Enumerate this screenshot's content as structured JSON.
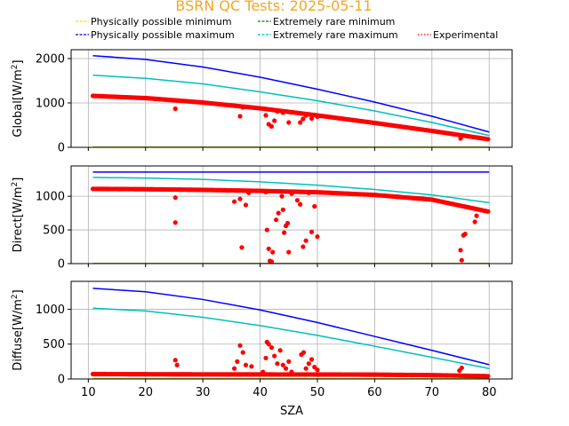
{
  "title": "BSRN QC Tests: 2025-05-11",
  "colors": {
    "title": "#f5a623",
    "phys_min": "#ffd700",
    "phys_max": "#0000ff",
    "rare_min": "#008000",
    "rare_max": "#00bfbf",
    "experimental": "#ff0000",
    "grid": "#b0b0b0"
  },
  "legend": [
    {
      "label": "Physically possible minimum",
      "key": "phys_min",
      "style": "dashed"
    },
    {
      "label": "Extremely rare minimum",
      "key": "rare_min",
      "style": "dashed"
    },
    {
      "label": "Physically possible maximum",
      "key": "phys_max",
      "style": "dashed"
    },
    {
      "label": "Extremely rare maximum",
      "key": "rare_max",
      "style": "dashed"
    },
    {
      "label": "Experimental",
      "key": "experimental",
      "style": "dotted"
    }
  ],
  "chart_data": [
    {
      "type": "scatter",
      "name": "global",
      "ylabel": "Global[W/m",
      "ylabel_sup": "2",
      "ylabel_end": "]",
      "xlim": [
        7,
        84
      ],
      "ylim": [
        0,
        2200
      ],
      "xticks": [
        10,
        20,
        30,
        40,
        50,
        60,
        70,
        80
      ],
      "yticks": [
        0,
        1000,
        2000
      ],
      "grid": true,
      "lines": {
        "phys_max": [
          [
            10.8,
            2065
          ],
          [
            20,
            1980
          ],
          [
            30,
            1810
          ],
          [
            40,
            1580
          ],
          [
            50,
            1310
          ],
          [
            60,
            1020
          ],
          [
            70,
            700
          ],
          [
            80,
            345
          ]
        ],
        "rare_max": [
          [
            10.8,
            1625
          ],
          [
            20,
            1555
          ],
          [
            30,
            1430
          ],
          [
            40,
            1250
          ],
          [
            50,
            1050
          ],
          [
            60,
            820
          ],
          [
            70,
            560
          ],
          [
            80,
            265
          ]
        ],
        "rare_min": [
          [
            10.8,
            2
          ],
          [
            80,
            2
          ]
        ],
        "phys_min": [
          [
            10.8,
            0
          ],
          [
            80,
            0
          ]
        ]
      },
      "experimental_trend": [
        [
          10.8,
          1160
        ],
        [
          20,
          1110
        ],
        [
          30,
          1010
        ],
        [
          40,
          880
        ],
        [
          50,
          720
        ],
        [
          60,
          550
        ],
        [
          70,
          370
        ],
        [
          80,
          180
        ]
      ],
      "experimental_outliers": [
        [
          25.2,
          870
        ],
        [
          36.5,
          700
        ],
        [
          37,
          900
        ],
        [
          41,
          720
        ],
        [
          41.5,
          520
        ],
        [
          42,
          470
        ],
        [
          42.5,
          600
        ],
        [
          43,
          810
        ],
        [
          44,
          780
        ],
        [
          45,
          560
        ],
        [
          47,
          560
        ],
        [
          47.5,
          640
        ],
        [
          48,
          720
        ],
        [
          49,
          650
        ],
        [
          50,
          690
        ],
        [
          75,
          200
        ]
      ]
    },
    {
      "type": "scatter",
      "name": "direct",
      "ylabel": "Direct[W/m",
      "ylabel_sup": "2",
      "ylabel_end": "]",
      "xlim": [
        7,
        84
      ],
      "ylim": [
        0,
        1450
      ],
      "xticks": [
        10,
        20,
        30,
        40,
        50,
        60,
        70,
        80
      ],
      "yticks": [
        0,
        500,
        1000
      ],
      "grid": true,
      "lines": {
        "phys_max": [
          [
            10.8,
            1360
          ],
          [
            80,
            1360
          ]
        ],
        "rare_max": [
          [
            10.8,
            1280
          ],
          [
            20,
            1270
          ],
          [
            30,
            1250
          ],
          [
            40,
            1215
          ],
          [
            50,
            1165
          ],
          [
            60,
            1100
          ],
          [
            70,
            1020
          ],
          [
            80,
            905
          ]
        ],
        "rare_min": [
          [
            10.8,
            2
          ],
          [
            80,
            2
          ]
        ],
        "phys_min": [
          [
            10.8,
            0
          ],
          [
            80,
            0
          ]
        ]
      },
      "experimental_trend": [
        [
          10.8,
          1110
        ],
        [
          20,
          1105
        ],
        [
          30,
          1095
        ],
        [
          40,
          1080
        ],
        [
          50,
          1060
        ],
        [
          60,
          1020
        ],
        [
          70,
          950
        ],
        [
          80,
          770
        ]
      ],
      "experimental_outliers": [
        [
          25.2,
          980
        ],
        [
          25.2,
          610
        ],
        [
          35.5,
          920
        ],
        [
          36.5,
          960
        ],
        [
          36.8,
          240
        ],
        [
          37.5,
          870
        ],
        [
          38,
          1050
        ],
        [
          41,
          1060
        ],
        [
          41.2,
          500
        ],
        [
          41.5,
          220
        ],
        [
          41.7,
          40
        ],
        [
          42,
          30
        ],
        [
          42.2,
          170
        ],
        [
          42.8,
          650
        ],
        [
          43.2,
          750
        ],
        [
          43.8,
          1000
        ],
        [
          44,
          800
        ],
        [
          44.2,
          460
        ],
        [
          44.5,
          560
        ],
        [
          44.8,
          600
        ],
        [
          45,
          170
        ],
        [
          45.5,
          1040
        ],
        [
          46.5,
          940
        ],
        [
          47,
          880
        ],
        [
          47.5,
          250
        ],
        [
          48,
          340
        ],
        [
          48.5,
          1050
        ],
        [
          49,
          470
        ],
        [
          49.5,
          850
        ],
        [
          50,
          400
        ],
        [
          75,
          200
        ],
        [
          75.2,
          50
        ],
        [
          75.5,
          420
        ],
        [
          75.8,
          440
        ],
        [
          77.5,
          620
        ],
        [
          77.8,
          710
        ]
      ]
    },
    {
      "type": "scatter",
      "name": "diffuse",
      "ylabel": "Diffuse[W/m",
      "ylabel_sup": "2",
      "ylabel_end": "]",
      "xlabel": "SZA",
      "xlim": [
        7,
        84
      ],
      "ylim": [
        0,
        1400
      ],
      "xticks": [
        10,
        20,
        30,
        40,
        50,
        60,
        70,
        80
      ],
      "yticks": [
        0,
        500,
        1000
      ],
      "grid": true,
      "lines": {
        "phys_max": [
          [
            10.8,
            1300
          ],
          [
            20,
            1250
          ],
          [
            30,
            1140
          ],
          [
            40,
            990
          ],
          [
            50,
            810
          ],
          [
            60,
            610
          ],
          [
            70,
            410
          ],
          [
            80,
            205
          ]
        ],
        "rare_max": [
          [
            10.8,
            1015
          ],
          [
            20,
            975
          ],
          [
            30,
            885
          ],
          [
            40,
            765
          ],
          [
            50,
            625
          ],
          [
            60,
            470
          ],
          [
            70,
            310
          ],
          [
            80,
            150
          ]
        ],
        "rare_min": [
          [
            10.8,
            2
          ],
          [
            80,
            2
          ]
        ],
        "phys_min": [
          [
            10.8,
            0
          ],
          [
            80,
            0
          ]
        ]
      },
      "experimental_trend": [
        [
          10.8,
          70
        ],
        [
          20,
          68
        ],
        [
          30,
          66
        ],
        [
          40,
          65
        ],
        [
          50,
          64
        ],
        [
          60,
          62
        ],
        [
          70,
          55
        ],
        [
          80,
          40
        ]
      ],
      "experimental_outliers": [
        [
          25.2,
          270
        ],
        [
          25.5,
          200
        ],
        [
          35.5,
          150
        ],
        [
          36,
          250
        ],
        [
          36.5,
          480
        ],
        [
          37,
          380
        ],
        [
          37.5,
          200
        ],
        [
          38.5,
          180
        ],
        [
          40.5,
          100
        ],
        [
          41,
          300
        ],
        [
          41.2,
          530
        ],
        [
          41.5,
          500
        ],
        [
          42,
          450
        ],
        [
          42.5,
          330
        ],
        [
          43,
          220
        ],
        [
          43.5,
          410
        ],
        [
          44,
          200
        ],
        [
          44.5,
          150
        ],
        [
          45,
          250
        ],
        [
          45.5,
          100
        ],
        [
          47.2,
          350
        ],
        [
          47.6,
          380
        ],
        [
          48,
          150
        ],
        [
          48.5,
          220
        ],
        [
          49,
          280
        ],
        [
          49.5,
          170
        ],
        [
          50,
          130
        ],
        [
          74.8,
          120
        ],
        [
          75.2,
          160
        ]
      ]
    }
  ]
}
